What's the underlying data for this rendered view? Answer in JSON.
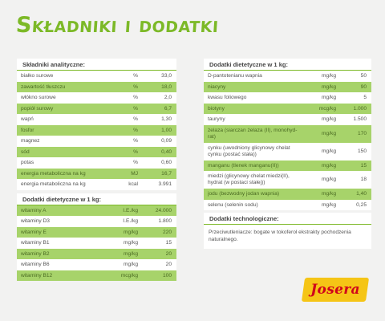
{
  "title": "Składniki i dodatki",
  "analytical": {
    "header": "Składniki analityczne:",
    "rows": [
      {
        "name": "białko surowe",
        "unit": "%",
        "value": "33,0"
      },
      {
        "name": "zawartość tłuszczu",
        "unit": "%",
        "value": "18,0"
      },
      {
        "name": "włókno surowe",
        "unit": "%",
        "value": "2,0"
      },
      {
        "name": "popiół surowy",
        "unit": "%",
        "value": "6,7"
      },
      {
        "name": "wapń",
        "unit": "%",
        "value": "1,30"
      },
      {
        "name": "fosfor",
        "unit": "%",
        "value": "1,00"
      },
      {
        "name": "magnez",
        "unit": "%",
        "value": "0,09"
      },
      {
        "name": "sód",
        "unit": "%",
        "value": "0,40"
      },
      {
        "name": "potas",
        "unit": "%",
        "value": "0,60"
      },
      {
        "name": "energia metaboliczna na kg",
        "unit": "MJ",
        "value": "16,7"
      },
      {
        "name": "energia metaboliczna na kg",
        "unit": "kcal",
        "value": "3.991"
      }
    ]
  },
  "vitamins": {
    "header": "Dodatki dietetyczne w 1 kg:",
    "rows": [
      {
        "name": "witaminy A",
        "unit": "I.E./kg",
        "value": "24.000"
      },
      {
        "name": "witaminy D3",
        "unit": "I.E./kg",
        "value": "1.800"
      },
      {
        "name": "witaminy E",
        "unit": "mg/kg",
        "value": "220"
      },
      {
        "name": "witaminy B1",
        "unit": "mg/kg",
        "value": "15"
      },
      {
        "name": "witaminy B2",
        "unit": "mg/kg",
        "value": "20"
      },
      {
        "name": "witaminy B6",
        "unit": "mg/kg",
        "value": "20"
      },
      {
        "name": "witaminy B12",
        "unit": "mcg/kg",
        "value": "100"
      }
    ]
  },
  "additives": {
    "header": "Dodatki dietetyczne w 1 kg:",
    "rows": [
      {
        "name": "D-pantotenianu wapnia",
        "unit": "mg/kg",
        "value": "50"
      },
      {
        "name": "niacyny",
        "unit": "mg/kg",
        "value": "90"
      },
      {
        "name": "kwasu foliowego",
        "unit": "mg/kg",
        "value": "5"
      },
      {
        "name": "biotyny",
        "unit": "mcg/kg",
        "value": "1.000"
      },
      {
        "name": "tauryny",
        "unit": "mg/kg",
        "value": "1.500"
      },
      {
        "name": "żelaza (siarczan żelaza (II), monohyd-rat)",
        "unit": "mg/kg",
        "value": "170"
      },
      {
        "name": "cynku (uwodniony glicynowy chelat cynku (postać stała))",
        "unit": "mg/kg",
        "value": "150"
      },
      {
        "name": "manganu (tlenek manganu(II))",
        "unit": "mg/kg",
        "value": "15"
      },
      {
        "name": "miedzi (glicynowy chelat miedzi(II), hydrat (w postaci stałej))",
        "unit": "mg/kg",
        "value": "18"
      },
      {
        "name": "jodu (bezwodny jodan wapnia)",
        "unit": "mg/kg",
        "value": "1,40"
      },
      {
        "name": "selenu (selenin sodu)",
        "unit": "mg/kg",
        "value": "0,25"
      }
    ]
  },
  "technological": {
    "header": "Dodatki technologiczne:",
    "text": "Przeciwutleniacze: bogate w tokoferol ekstrakty pochodzenia naturalnego."
  },
  "logo": {
    "text": "Josera",
    "colors": {
      "background": "#f5c516",
      "text": "#d0021b"
    }
  },
  "colors": {
    "accent": "#7cb927",
    "row_green": "#a7d36a",
    "row_white": "#ffffff",
    "background": "#f2f2f1"
  }
}
